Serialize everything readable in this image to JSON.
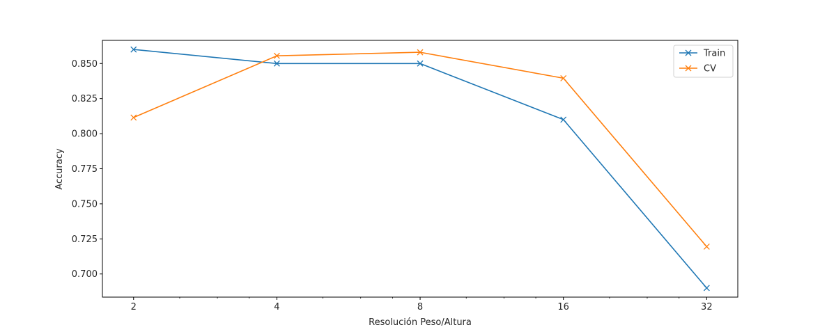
{
  "chart_data": {
    "type": "line",
    "xscale": "log2",
    "x": [
      2,
      4,
      8,
      16,
      32
    ],
    "xticks": [
      "2",
      "4",
      "8",
      "16",
      "32"
    ],
    "xlim": [
      1.72,
      37.2
    ],
    "ylim": [
      0.6835,
      0.8665
    ],
    "yticks": [
      "0.700",
      "0.725",
      "0.750",
      "0.775",
      "0.800",
      "0.825",
      "0.850"
    ],
    "ytick_values": [
      0.7,
      0.725,
      0.75,
      0.775,
      0.8,
      0.825,
      0.85
    ],
    "xlabel": "Resolución Peso/Altura",
    "ylabel": "Accuracy",
    "legend_position": "top-right",
    "marker": "x",
    "series": [
      {
        "name": "Train",
        "color": "#1f77b4",
        "values": [
          0.86,
          0.85,
          0.85,
          0.81,
          0.69
        ]
      },
      {
        "name": "CV",
        "color": "#ff7f0e",
        "values": [
          0.8115,
          0.8555,
          0.858,
          0.8395,
          0.7195
        ]
      }
    ]
  }
}
